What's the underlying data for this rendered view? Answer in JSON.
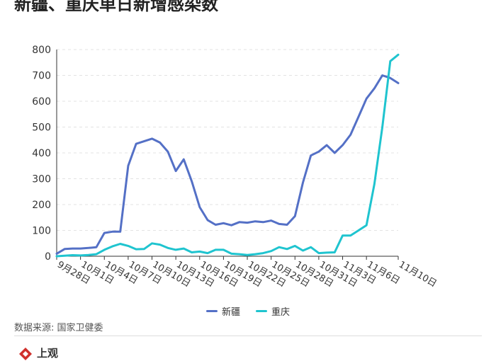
{
  "header": {
    "title": "新疆、重庆单日新增感染数"
  },
  "footer": {
    "source": "数据来源: 国家卫健委",
    "brand": "上观"
  },
  "chart_data": {
    "type": "line",
    "title": "新疆、重庆单日新增感染数",
    "xlabel": "",
    "ylabel": "",
    "ylim": [
      0,
      800
    ],
    "yticks": [
      0,
      100,
      200,
      300,
      400,
      500,
      600,
      700,
      800
    ],
    "grid": true,
    "legend_position": "bottom",
    "x": [
      "9月28日",
      "9月29日",
      "9月30日",
      "10月1日",
      "10月2日",
      "10月3日",
      "10月4日",
      "10月5日",
      "10月6日",
      "10月7日",
      "10月8日",
      "10月9日",
      "10月10日",
      "10月11日",
      "10月12日",
      "10月13日",
      "10月14日",
      "10月15日",
      "10月16日",
      "10月17日",
      "10月18日",
      "10月19日",
      "10月20日",
      "10月21日",
      "10月22日",
      "10月23日",
      "10月24日",
      "10月25日",
      "10月26日",
      "10月27日",
      "10月28日",
      "10月29日",
      "10月30日",
      "10月31日",
      "11月1日",
      "11月2日",
      "11月3日",
      "11月4日",
      "11月5日",
      "11月6日",
      "11月7日",
      "11月8日",
      "11月9日",
      "11月10日"
    ],
    "tick_labels": [
      "9月28日",
      "10月1日",
      "10月4日",
      "10月7日",
      "10月10日",
      "10月13日",
      "10月16日",
      "10月19日",
      "10月22日",
      "10月25日",
      "10月28日",
      "10月31日",
      "11月3日",
      "11月6日",
      "11月10日"
    ],
    "series": [
      {
        "name": "新疆",
        "color": "#5470c6",
        "values": [
          10,
          28,
          30,
          30,
          32,
          35,
          90,
          95,
          95,
          350,
          435,
          445,
          455,
          440,
          405,
          330,
          375,
          290,
          190,
          140,
          122,
          128,
          120,
          132,
          130,
          135,
          132,
          138,
          125,
          122,
          155,
          285,
          390,
          405,
          430,
          400,
          430,
          470,
          540,
          610,
          650,
          700,
          690,
          670
        ]
      },
      {
        "name": "重庆",
        "color": "#1fc4cf",
        "values": [
          0,
          2,
          4,
          3,
          5,
          8,
          25,
          38,
          48,
          40,
          27,
          28,
          50,
          45,
          32,
          25,
          30,
          15,
          18,
          12,
          25,
          25,
          10,
          8,
          5,
          8,
          12,
          20,
          35,
          28,
          40,
          22,
          35,
          12,
          14,
          15,
          80,
          80,
          100,
          120,
          280,
          500,
          755,
          780
        ]
      }
    ]
  }
}
